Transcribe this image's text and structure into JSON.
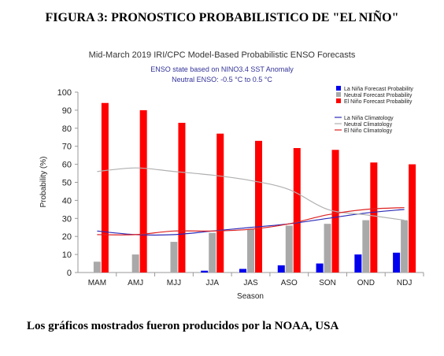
{
  "figure": {
    "title": "FIGURA 3: PRONOSTICO PROBABILISTICO DE \"EL NIÑO\"",
    "caption": "Los gráficos mostrados fueron producidos por la NOAA, USA"
  },
  "chart_data": {
    "type": "bar",
    "title": "Mid-March 2019 IRI/CPC Model-Based Probabilistic ENSO Forecasts",
    "subtitle_lines": [
      "ENSO state based on NINO3.4 SST Anomaly",
      "Neutral ENSO: -0.5 °C to 0.5 °C"
    ],
    "xlabel": "Season",
    "ylabel": "Probability (%)",
    "ylim": [
      0,
      100
    ],
    "yticks": [
      0,
      10,
      20,
      30,
      40,
      50,
      60,
      70,
      80,
      90,
      100
    ],
    "categories": [
      "MAM",
      "AMJ",
      "MJJ",
      "JJA",
      "JAS",
      "ASO",
      "SON",
      "OND",
      "NDJ"
    ],
    "series": [
      {
        "name": "La Niña Forecast Probability",
        "color": "#0000ee",
        "values": [
          0,
          0,
          0,
          1,
          2,
          4,
          5,
          10,
          11
        ]
      },
      {
        "name": "Neutral Forecast Probability",
        "color": "#a9a9a9",
        "values": [
          6,
          10,
          17,
          22,
          24,
          26,
          27,
          29,
          29
        ]
      },
      {
        "name": "El Niño Forecast Probability",
        "color": "#ff0000",
        "values": [
          94,
          90,
          83,
          77,
          73,
          69,
          68,
          61,
          60
        ]
      }
    ],
    "climatology": [
      {
        "name": "La Niña Climatology",
        "color": "#2b2bb8",
        "values": [
          23,
          21,
          21,
          23,
          25,
          27,
          30,
          33,
          35
        ]
      },
      {
        "name": "Neutral Climatology",
        "color": "#b0b0b0",
        "values": [
          56,
          58,
          56,
          54,
          51,
          46,
          35,
          32,
          29
        ]
      },
      {
        "name": "El Niño Climatology",
        "color": "#dd2222",
        "values": [
          21,
          21,
          23,
          23,
          24,
          27,
          32,
          35,
          36
        ]
      }
    ],
    "legend_position": "top-right",
    "grid": false
  }
}
